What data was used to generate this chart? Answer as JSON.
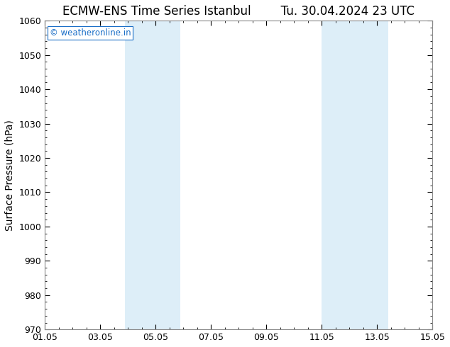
{
  "title_left": "ECMW-ENS Time Series Istanbul",
  "title_right": "Tu. 30.04.2024 23 UTC",
  "ylabel": "Surface Pressure (hPa)",
  "ylim": [
    970,
    1060
  ],
  "yticks": [
    970,
    980,
    990,
    1000,
    1010,
    1020,
    1030,
    1040,
    1050,
    1060
  ],
  "xlim_start": 0,
  "xlim_end": 14,
  "xtick_labels": [
    "01.05",
    "03.05",
    "05.05",
    "07.05",
    "09.05",
    "11.05",
    "13.05",
    "15.05"
  ],
  "xtick_positions": [
    0,
    2,
    4,
    6,
    8,
    10,
    12,
    14
  ],
  "shaded_regions": [
    {
      "xmin": 2.8,
      "xmax": 4.2,
      "color": "#ddeef8"
    },
    {
      "xmin": 4.2,
      "xmax": 5.0,
      "color": "#ddeef8"
    },
    {
      "xmin": 10.0,
      "xmax": 11.0,
      "color": "#ddeef8"
    },
    {
      "xmin": 11.0,
      "xmax": 12.5,
      "color": "#ddeef8"
    }
  ],
  "watermark_text": "© weatheronline.in",
  "watermark_color": "#1a6ec7",
  "background_color": "#ffffff",
  "plot_bg_color": "#ffffff",
  "border_color": "#888888",
  "title_fontsize": 12,
  "label_fontsize": 10,
  "tick_fontsize": 9,
  "watermark_fontsize": 8.5
}
